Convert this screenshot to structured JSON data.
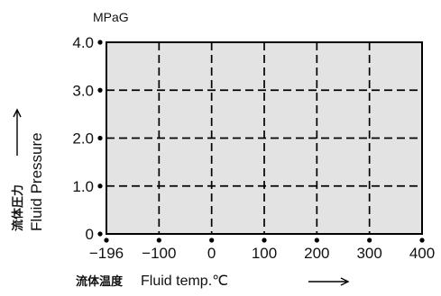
{
  "chart_data": {
    "type": "area",
    "unit_label": "MPaG",
    "x_ticks": [
      {
        "label": "−196",
        "value": -196
      },
      {
        "label": "−100",
        "value": -100
      },
      {
        "label": "0",
        "value": 0
      },
      {
        "label": "100",
        "value": 100
      },
      {
        "label": "200",
        "value": 200
      },
      {
        "label": "300",
        "value": 300
      },
      {
        "label": "400",
        "value": 400
      }
    ],
    "y_ticks": [
      {
        "label": "0",
        "value": 0
      },
      {
        "label": "1.0",
        "value": 1.0
      },
      {
        "label": "2.0",
        "value": 2.0
      },
      {
        "label": "3.0",
        "value": 3.0
      },
      {
        "label": "4.0",
        "value": 4.0
      }
    ],
    "ylim": [
      0,
      4.0
    ],
    "xlim": [
      -196,
      400
    ],
    "xlabel_cjk": "流体温度",
    "xlabel": "Fluid temp.℃",
    "ylabel_cjk": "流体圧力",
    "ylabel": "Fluid Pressure",
    "grid": true,
    "grid_style": "dashed",
    "fill_color": "#e3e3e3",
    "region": {
      "x": [
        -196,
        400
      ],
      "y": [
        0,
        4.0
      ]
    }
  }
}
